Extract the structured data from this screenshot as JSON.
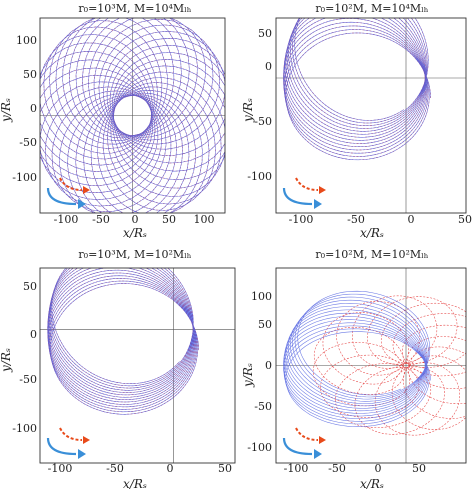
{
  "panels": [
    {
      "title": "r₀=10³M, M=10⁴Mₗₕ",
      "title_plain": "r0=10^3M, M=10^4M_BH",
      "xlabel": "x/Rₛ",
      "ylabel": "y/Rₛ",
      "xticks": [
        "-100",
        "-50",
        "0",
        "50",
        "100"
      ],
      "yticks": [
        "-100",
        "-50",
        "0",
        "50",
        "100"
      ]
    },
    {
      "title": "r₀=10²M, M=10⁴Mₗₕ",
      "title_plain": "r0=10^2M, M=10^4M_BH",
      "xlabel": "x/Rₛ",
      "ylabel": "y/Rₛ",
      "xticks": [
        "-100",
        "-50",
        "0",
        "50"
      ],
      "yticks": [
        "-100",
        "-50",
        "0",
        "50"
      ]
    },
    {
      "title": "r₀=10³M, M=10²Mₗₕ",
      "title_plain": "r0=10^3M, M=10^2M_BH",
      "xlabel": "x/Rₛ",
      "ylabel": "y/Rₛ",
      "xticks": [
        "-100",
        "-50",
        "0",
        "50"
      ],
      "yticks": [
        "-100",
        "-50",
        "0",
        "50"
      ]
    },
    {
      "title": "r₀=10²M, M=10²Mₗₕ",
      "title_plain": "r0=10^2M, M=10^2M_BH",
      "xlabel": "x/Rₛ",
      "ylabel": "y/Rₛ",
      "xticks": [
        "-100",
        "-50",
        "0",
        "50"
      ],
      "yticks": [
        "-100",
        "-50",
        "0",
        "50",
        "100"
      ]
    }
  ],
  "chart_data": [
    {
      "type": "line",
      "title": "r0=10^3M, M=10^4M_BH",
      "xlabel": "x/R_s",
      "ylabel": "y/R_s",
      "xlim": [
        -130,
        130
      ],
      "ylim": [
        -130,
        130
      ],
      "grid": false,
      "series": [
        {
          "style": "dashed",
          "color": "#e02020",
          "orbit": {
            "a": 85,
            "e": 0.45,
            "precession_deg_total": 360,
            "loops": 34
          }
        },
        {
          "style": "solid",
          "color": "#5060e0",
          "orbit": {
            "a": 85,
            "e": 0.45,
            "precession_deg_total": 360,
            "loops": 34
          }
        }
      ],
      "annotations": [
        "blue solid arrow (counter-clockwise)",
        "red dashed arrow (counter-clockwise)"
      ]
    },
    {
      "type": "line",
      "title": "r0=10^2M, M=10^4M_BH",
      "xlabel": "x/R_s",
      "ylabel": "y/R_s",
      "xlim": [
        -130,
        60
      ],
      "ylim": [
        -135,
        60
      ],
      "grid": false,
      "series": [
        {
          "style": "dashed",
          "color": "#e02020",
          "orbit": {
            "a": 72,
            "e": 0.45,
            "precession_deg_total": -55,
            "loops": 14
          }
        },
        {
          "style": "solid",
          "color": "#5060e0",
          "orbit": {
            "a": 72,
            "e": 0.45,
            "precession_deg_total": -55,
            "loops": 14
          }
        }
      ]
    },
    {
      "type": "line",
      "title": "r0=10^3M, M=10^2M_BH",
      "xlabel": "x/R_s",
      "ylabel": "y/R_s",
      "xlim": [
        -130,
        60
      ],
      "ylim": [
        -130,
        60
      ],
      "grid": false,
      "series": [
        {
          "style": "dashed",
          "color": "#e02020",
          "orbit": {
            "a": 72,
            "e": 0.45,
            "precession_deg_total": -40,
            "loops": 14
          }
        },
        {
          "style": "solid",
          "color": "#5060e0",
          "orbit": {
            "a": 72,
            "e": 0.45,
            "precession_deg_total": -40,
            "loops": 14
          }
        }
      ]
    },
    {
      "type": "line",
      "title": "r0=10^2M, M=10^2M_BH",
      "xlabel": "x/R_s",
      "ylabel": "y/R_s",
      "xlim": [
        -130,
        60
      ],
      "ylim": [
        -130,
        130
      ],
      "grid": false,
      "series": [
        {
          "style": "dashed",
          "color": "#e02020",
          "orbit": {
            "a": 47,
            "e": 0.6,
            "precession_deg_total": 360,
            "loops": 16
          }
        },
        {
          "style": "solid",
          "color": "#5060e0",
          "orbit": {
            "a": 72,
            "e": 0.45,
            "precession_deg_total": -60,
            "loops": 14
          }
        }
      ]
    }
  ],
  "colors": {
    "red_dashed": "#e02020",
    "blue_solid": "#5060e0",
    "arrow_blue": "#3a8fd8",
    "arrow_red": "#e84a1a"
  }
}
